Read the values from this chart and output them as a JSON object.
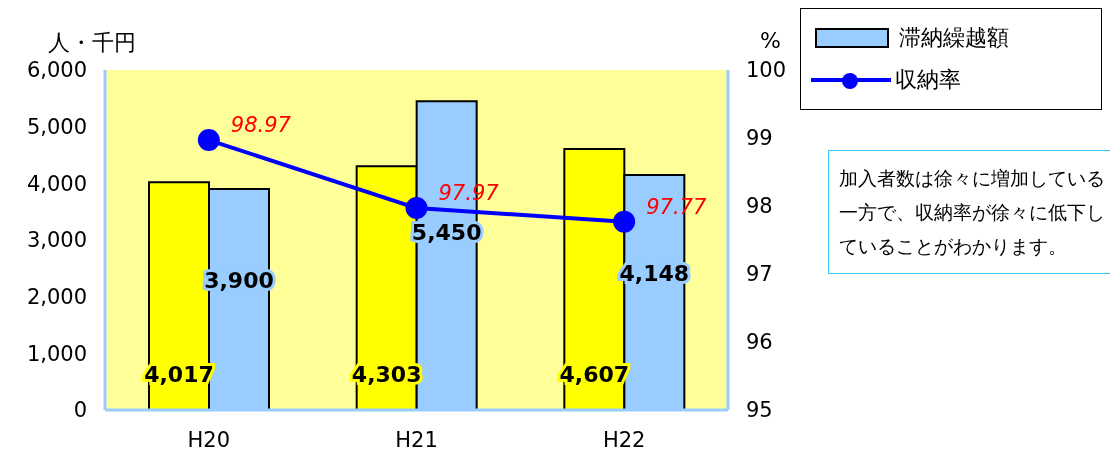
{
  "chart_data": {
    "type": "bar",
    "categories": [
      "H20",
      "H21",
      "H22"
    ],
    "series": [
      {
        "color": "#ffff00",
        "values": [
          4017,
          4303,
          4607
        ],
        "value_labels": [
          "4,017",
          "4,303",
          "4,607"
        ]
      },
      {
        "name": "滞納繰越額",
        "color": "#99ccff",
        "values": [
          3900,
          5450,
          4148
        ],
        "value_labels": [
          "3,900",
          "5,450",
          "4,148"
        ]
      },
      {
        "name": "収納率",
        "type": "line",
        "axis": "y2",
        "color": "#0000ff",
        "values": [
          98.97,
          97.97,
          97.77
        ]
      }
    ],
    "ylabel": "人・千円",
    "y2label": "%",
    "ylim": [
      0,
      6000
    ],
    "yticks": [
      {
        "value": 0,
        "label": "0"
      },
      {
        "value": 1000,
        "label": "1,000"
      },
      {
        "value": 2000,
        "label": "2,000"
      },
      {
        "value": 3000,
        "label": "3,000"
      },
      {
        "value": 4000,
        "label": "4,000"
      },
      {
        "value": 5000,
        "label": "5,000"
      },
      {
        "value": 6000,
        "label": "6,000"
      }
    ],
    "y2lim": [
      95,
      100
    ],
    "y2ticks": [
      95,
      96,
      97,
      98,
      99,
      100
    ],
    "data_labels": true,
    "marker": "circle",
    "legend": "top right",
    "annotations": [
      "加入者数は徐々に増加している一方で、収納率が徐々に低下していることがわかります。"
    ]
  }
}
